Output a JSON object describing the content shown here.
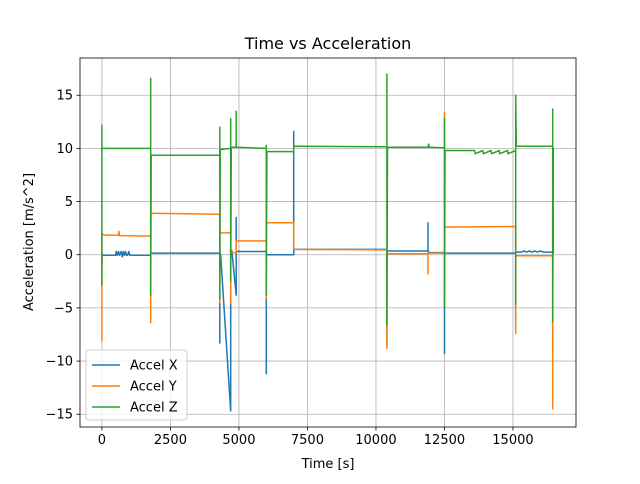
{
  "chart_data": {
    "type": "line",
    "title": "Time vs Acceleration",
    "xlabel": "Time [s]",
    "ylabel": "Acceleration [m/s^2]",
    "xlim": [
      -800,
      17300
    ],
    "ylim": [
      -16.2,
      18.5
    ],
    "xticks": [
      0,
      2500,
      5000,
      7500,
      10000,
      12500,
      15000
    ],
    "xtick_labels": [
      "0",
      "2500",
      "5000",
      "7500",
      "10000",
      "12500",
      "15000"
    ],
    "yticks": [
      -15,
      -10,
      -5,
      0,
      5,
      10,
      15
    ],
    "ytick_labels": [
      "−15",
      "−10",
      "−5",
      "0",
      "5",
      "10",
      "15"
    ],
    "grid": true,
    "legend_position": "lower-left",
    "series": [
      {
        "name": "Accel X",
        "color": "#1f77b4",
        "x": [
          0,
          0,
          0,
          30,
          500,
          520,
          560,
          600,
          640,
          700,
          740,
          780,
          820,
          860,
          900,
          940,
          980,
          1020,
          1780,
          1780,
          1780,
          1800,
          4300,
          4300,
          4300,
          4320,
          4330,
          4700,
          4700,
          4700,
          4720,
          4740,
          4900,
          4900,
          4900,
          4920,
          5000,
          5000,
          5000,
          5020,
          6000,
          6000,
          6000,
          6020,
          7000,
          7000,
          7000,
          7020,
          10400,
          10400,
          10400,
          10420,
          11900,
          11900,
          11900,
          11920,
          12500,
          12500,
          12500,
          12520,
          15100,
          15100,
          15100,
          15120,
          15300,
          15400,
          15500,
          15600,
          15700,
          15800,
          15900,
          16000,
          16100,
          16450,
          16450,
          16450,
          16470,
          16500
        ],
        "y": [
          -1.0,
          -0.5,
          0.2,
          -0.05,
          -0.05,
          0.3,
          -0.05,
          0.3,
          -0.05,
          0.3,
          -0.2,
          0.3,
          -0.05,
          0.3,
          -0.05,
          -0.05,
          0.3,
          -0.05,
          -0.05,
          -4.0,
          0.2,
          0.15,
          0.15,
          -8.3,
          0.3,
          0.05,
          0.05,
          -14.7,
          0.5,
          0.3,
          0.3,
          0.4,
          -3.8,
          3.5,
          0.3,
          0.3,
          0.3,
          0.3,
          0.35,
          0.3,
          0.3,
          -11.2,
          0.1,
          0.0,
          0.0,
          11.6,
          0.5,
          0.5,
          0.5,
          -8.5,
          0.4,
          0.35,
          0.35,
          3.0,
          0.45,
          0.2,
          0.2,
          -9.3,
          0.25,
          0.15,
          0.15,
          -6.5,
          0.3,
          0.25,
          0.25,
          0.35,
          0.25,
          0.35,
          0.25,
          0.35,
          0.25,
          0.35,
          0.25,
          0.25,
          -9.2,
          9.9,
          0.2,
          0.2
        ]
      },
      {
        "name": "Accel Y",
        "color": "#ff7f0e",
        "x": [
          0,
          0,
          0,
          30,
          100,
          600,
          620,
          640,
          660,
          1780,
          1780,
          1780,
          1800,
          4300,
          4300,
          4300,
          4320,
          4700,
          4700,
          4700,
          4720,
          4900,
          4900,
          4900,
          4920,
          6000,
          6000,
          6000,
          6020,
          7000,
          7000,
          7000,
          7020,
          10400,
          10400,
          10400,
          10420,
          11900,
          11900,
          11900,
          11920,
          12500,
          12500,
          12500,
          12520,
          15100,
          15100,
          15100,
          15120,
          16450,
          16450,
          16450,
          16470,
          16500
        ],
        "y": [
          -8.1,
          -3.5,
          2.0,
          1.9,
          1.85,
          1.85,
          2.2,
          1.8,
          1.8,
          1.75,
          -6.4,
          3.9,
          3.9,
          3.8,
          -4.5,
          2.1,
          2.05,
          2.05,
          -4.6,
          0.5,
          0.2,
          0.2,
          1.3,
          1.35,
          1.3,
          1.3,
          -4.1,
          3.0,
          3.0,
          3.0,
          0.6,
          0.5,
          0.5,
          0.45,
          -8.8,
          0.2,
          0.1,
          0.1,
          -1.8,
          0.15,
          0.15,
          0.15,
          13.4,
          2.6,
          2.6,
          2.65,
          -7.4,
          -0.1,
          -0.1,
          -0.1,
          -14.5,
          4.0,
          1.8,
          1.8
        ]
      },
      {
        "name": "Accel Z",
        "color": "#2ca02c",
        "x": [
          0,
          0,
          0,
          30,
          1780,
          1780,
          1780,
          1800,
          4300,
          4300,
          4300,
          4320,
          4700,
          4700,
          4700,
          4720,
          4900,
          4900,
          4900,
          4920,
          6000,
          6000,
          6000,
          6020,
          7000,
          7000,
          7000,
          7020,
          10400,
          10400,
          10400,
          10420,
          11900,
          11920,
          11940,
          12500,
          12500,
          12500,
          12520,
          13600,
          13620,
          13900,
          13920,
          14200,
          14220,
          14500,
          14520,
          14800,
          14820,
          15100,
          15100,
          15100,
          15120,
          16450,
          16450,
          16450,
          16470,
          16500
        ],
        "y": [
          -2.9,
          12.2,
          9.9,
          10.0,
          10.0,
          16.6,
          -3.8,
          9.35,
          9.35,
          12.0,
          -4.2,
          9.9,
          10.0,
          12.8,
          -2.5,
          10.1,
          10.1,
          13.5,
          10.1,
          10.1,
          10.0,
          10.3,
          -3.8,
          9.7,
          9.7,
          10.0,
          10.2,
          10.2,
          10.15,
          17.0,
          -6.6,
          10.1,
          10.1,
          10.4,
          10.1,
          10.05,
          12.8,
          -5.0,
          9.8,
          9.8,
          9.5,
          9.8,
          9.5,
          9.8,
          9.5,
          9.8,
          9.5,
          9.8,
          9.5,
          9.8,
          -4.7,
          15.0,
          10.2,
          10.2,
          13.7,
          -6.3,
          10.0,
          10.0
        ]
      }
    ]
  }
}
